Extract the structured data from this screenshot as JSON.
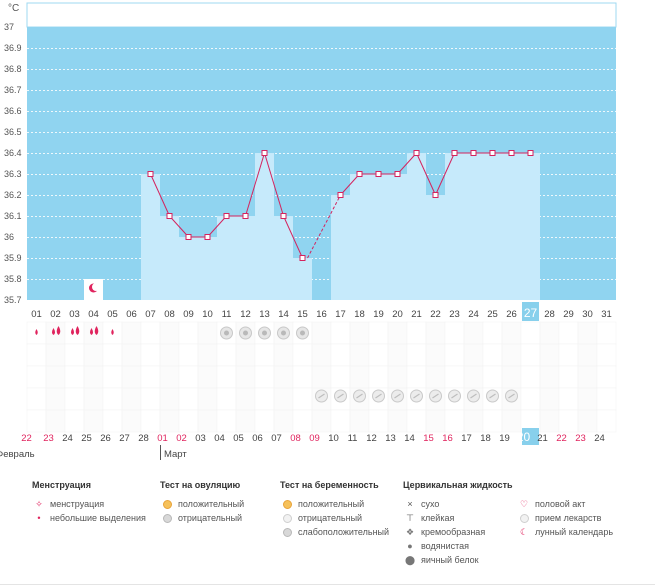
{
  "chart_data": {
    "type": "bar",
    "unit_label": "°C",
    "ylim": [
      35.7,
      37.0
    ],
    "y_ticks": [
      "37",
      "36.9",
      "36.8",
      "36.7",
      "36.6",
      "36.5",
      "36.4",
      "36.3",
      "36.2",
      "36.1",
      "36",
      "35.9",
      "35.8",
      "35.7"
    ],
    "days": [
      "01",
      "02",
      "03",
      "04",
      "05",
      "06",
      "07",
      "08",
      "09",
      "10",
      "11",
      "12",
      "13",
      "14",
      "15",
      "16",
      "17",
      "18",
      "19",
      "20",
      "21",
      "22",
      "23",
      "24",
      "25",
      "26",
      "27",
      "28",
      "29",
      "30",
      "31"
    ],
    "temperatures": [
      null,
      null,
      null,
      null,
      null,
      null,
      36.3,
      36.1,
      36.0,
      36.0,
      36.1,
      36.1,
      36.4,
      36.1,
      35.9,
      null,
      36.2,
      36.3,
      36.3,
      36.3,
      36.4,
      36.2,
      36.4,
      36.4,
      36.4,
      36.4,
      36.4,
      null,
      null,
      null,
      null
    ],
    "dashed_from_day": "16",
    "current_day": "27",
    "moon_day": "04",
    "menstruation_days": [
      "01",
      "02",
      "03",
      "04",
      "05"
    ],
    "menstruation_heavy": [
      false,
      true,
      true,
      true,
      false
    ],
    "ovulation_neg_days": [
      "11",
      "12",
      "13",
      "14",
      "15"
    ],
    "pregnancy_neg_days": [
      "16",
      "17",
      "18",
      "19",
      "20",
      "21",
      "22",
      "23",
      "24",
      "25",
      "26"
    ],
    "cycle_dates": [
      "22",
      "23",
      "24",
      "25",
      "26",
      "27",
      "28",
      "01",
      "02",
      "03",
      "04",
      "05",
      "06",
      "07",
      "08",
      "09",
      "10",
      "11",
      "12",
      "13",
      "14",
      "15",
      "16",
      "17",
      "18",
      "19",
      "20",
      "21",
      "22",
      "23",
      "24"
    ],
    "cycle_red": [
      true,
      true,
      false,
      false,
      false,
      false,
      false,
      true,
      true,
      false,
      false,
      false,
      false,
      false,
      true,
      true,
      false,
      false,
      false,
      false,
      false,
      true,
      true,
      false,
      false,
      false,
      false,
      false,
      true,
      true,
      false
    ],
    "month_feb": "Февраль",
    "month_mar": "Март",
    "colors": {
      "band": "#90d4f0",
      "bar": "#c6eafb",
      "line": "#d4235e",
      "current": "#88d0ec"
    }
  },
  "legend": {
    "menstruation": {
      "title": "Менструация",
      "items": [
        "менструация",
        "небольшие выделения"
      ]
    },
    "ovulation": {
      "title": "Тест на овуляцию",
      "items": [
        "положительный",
        "отрицательный"
      ]
    },
    "pregnancy": {
      "title": "Тест на беременность",
      "items": [
        "положительный",
        "отрицательный",
        "слабоположительный"
      ]
    },
    "cervical": {
      "title": "Цервикальная жидкость",
      "items": [
        "сухо",
        "клейкая",
        "кремообразная",
        "водянистая",
        "яичный белок"
      ]
    },
    "other": {
      "items": [
        "половой акт",
        "прием лекарств",
        "лунный календарь"
      ]
    }
  }
}
